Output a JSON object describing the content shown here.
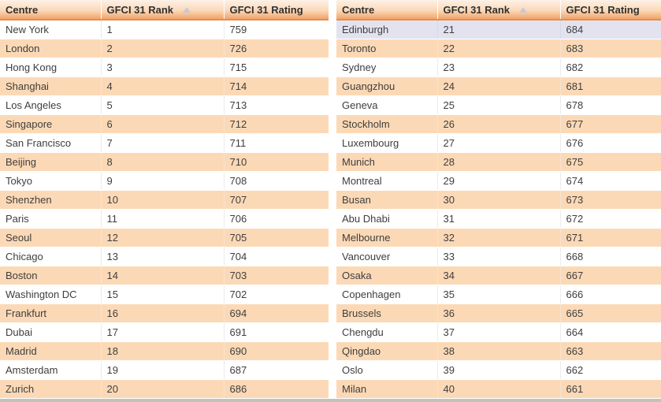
{
  "colors": {
    "header_gradient_top": "#FDF1E7",
    "header_gradient_bottom": "#F1A468",
    "header_border": "#DE9058",
    "row_alt": "#FCD9B6",
    "row_selected": "#E3E3F0",
    "bottom_bar": "#C5C1BA"
  },
  "icons": {
    "rank_sort": "sort-ascending-arrow"
  },
  "tables": [
    {
      "name": "gfci-ranking-1-20",
      "columns": [
        {
          "label": "Centre"
        },
        {
          "label": "GFCI 31 Rank",
          "sorted": "ascending"
        },
        {
          "label": "GFCI 31 Rating"
        }
      ],
      "rows": [
        {
          "centre": "New York",
          "rank": "1",
          "rating": "759"
        },
        {
          "centre": "London",
          "rank": "2",
          "rating": "726"
        },
        {
          "centre": "Hong Kong",
          "rank": "3",
          "rating": "715"
        },
        {
          "centre": "Shanghai",
          "rank": "4",
          "rating": "714"
        },
        {
          "centre": "Los Angeles",
          "rank": "5",
          "rating": "713"
        },
        {
          "centre": "Singapore",
          "rank": "6",
          "rating": "712"
        },
        {
          "centre": "San Francisco",
          "rank": "7",
          "rating": "711"
        },
        {
          "centre": "Beijing",
          "rank": "8",
          "rating": "710"
        },
        {
          "centre": "Tokyo",
          "rank": "9",
          "rating": "708"
        },
        {
          "centre": "Shenzhen",
          "rank": "10",
          "rating": "707"
        },
        {
          "centre": "Paris",
          "rank": "11",
          "rating": "706"
        },
        {
          "centre": "Seoul",
          "rank": "12",
          "rating": "705"
        },
        {
          "centre": "Chicago",
          "rank": "13",
          "rating": "704"
        },
        {
          "centre": "Boston",
          "rank": "14",
          "rating": "703"
        },
        {
          "centre": "Washington DC",
          "rank": "15",
          "rating": "702"
        },
        {
          "centre": "Frankfurt",
          "rank": "16",
          "rating": "694"
        },
        {
          "centre": "Dubai",
          "rank": "17",
          "rating": "691"
        },
        {
          "centre": "Madrid",
          "rank": "18",
          "rating": "690"
        },
        {
          "centre": "Amsterdam",
          "rank": "19",
          "rating": "687"
        },
        {
          "centre": "Zurich",
          "rank": "20",
          "rating": "686"
        }
      ]
    },
    {
      "name": "gfci-ranking-21-40",
      "columns": [
        {
          "label": "Centre"
        },
        {
          "label": "GFCI 31 Rank",
          "sorted": "ascending"
        },
        {
          "label": "GFCI 31 Rating"
        }
      ],
      "rows": [
        {
          "centre": "Edinburgh",
          "rank": "21",
          "rating": "684",
          "selected": true
        },
        {
          "centre": "Toronto",
          "rank": "22",
          "rating": "683"
        },
        {
          "centre": "Sydney",
          "rank": "23",
          "rating": "682"
        },
        {
          "centre": "Guangzhou",
          "rank": "24",
          "rating": "681"
        },
        {
          "centre": "Geneva",
          "rank": "25",
          "rating": "678"
        },
        {
          "centre": "Stockholm",
          "rank": "26",
          "rating": "677"
        },
        {
          "centre": "Luxembourg",
          "rank": "27",
          "rating": "676"
        },
        {
          "centre": "Munich",
          "rank": "28",
          "rating": "675"
        },
        {
          "centre": "Montreal",
          "rank": "29",
          "rating": "674"
        },
        {
          "centre": "Busan",
          "rank": "30",
          "rating": "673"
        },
        {
          "centre": "Abu Dhabi",
          "rank": "31",
          "rating": "672"
        },
        {
          "centre": "Melbourne",
          "rank": "32",
          "rating": "671"
        },
        {
          "centre": "Vancouver",
          "rank": "33",
          "rating": "668"
        },
        {
          "centre": "Osaka",
          "rank": "34",
          "rating": "667"
        },
        {
          "centre": "Copenhagen",
          "rank": "35",
          "rating": "666"
        },
        {
          "centre": "Brussels",
          "rank": "36",
          "rating": "665"
        },
        {
          "centre": "Chengdu",
          "rank": "37",
          "rating": "664"
        },
        {
          "centre": "Qingdao",
          "rank": "38",
          "rating": "663"
        },
        {
          "centre": "Oslo",
          "rank": "39",
          "rating": "662"
        },
        {
          "centre": "Milan",
          "rank": "40",
          "rating": "661"
        }
      ]
    }
  ]
}
